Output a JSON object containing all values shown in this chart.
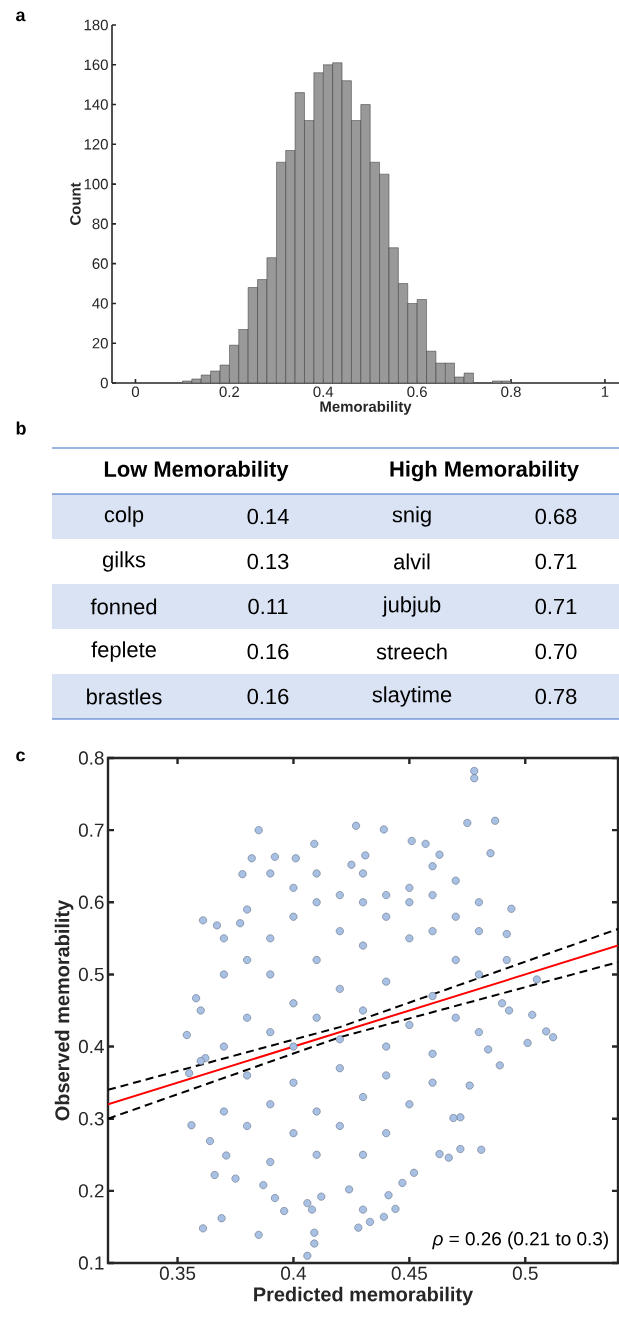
{
  "chart_data": [
    {
      "type": "histogram",
      "title": "a",
      "xlabel": "Memorability",
      "ylabel": "Count",
      "color": "#999999",
      "bins": [
        0.1,
        0.12,
        0.14,
        0.16,
        0.18,
        0.2,
        0.22,
        0.24,
        0.26,
        0.28,
        0.3,
        0.32,
        0.34,
        0.36,
        0.38,
        0.4,
        0.42,
        0.44,
        0.46,
        0.48,
        0.5,
        0.52,
        0.54,
        0.56,
        0.58,
        0.6,
        0.62,
        0.64,
        0.66,
        0.68,
        0.7,
        0.72,
        0.74,
        0.76,
        0.78,
        0.8
      ],
      "values": [
        1,
        2,
        4,
        6,
        9,
        19,
        27,
        48,
        52,
        63,
        111,
        117,
        146,
        132,
        156,
        160,
        161,
        152,
        132,
        140,
        111,
        105,
        68,
        50,
        40,
        42,
        16,
        10,
        10,
        3,
        5,
        0,
        0,
        1,
        1
      ],
      "xlim": [
        -0.05,
        1.03
      ],
      "ylim": [
        0,
        180
      ],
      "xticks": [
        0,
        0.2,
        0.4,
        0.6,
        0.8,
        1
      ],
      "yticks": [
        0,
        20,
        40,
        60,
        80,
        100,
        120,
        140,
        160,
        180
      ]
    },
    {
      "type": "other",
      "title": "b",
      "annotations": [
        "Low Memorability",
        "High Memorability",
        "colp",
        "0.14",
        "snig",
        "0.68",
        "gilks",
        "0.13",
        "alvil",
        "0.71",
        "fonned",
        "0.11",
        "jubjub",
        "0.71",
        "feplete",
        "0.16",
        "streech",
        "0.70",
        "brastles",
        "0.16",
        "slaytime",
        "0.78"
      ]
    },
    {
      "type": "scatter",
      "title": "c",
      "xlabel": "Predicted memorability",
      "ylabel": "Observed memorability",
      "series": [
        {
          "type": "scatter",
          "marker": "circle",
          "color": "#a7c0e4",
          "x": [
            0.478,
            0.478,
            0.475,
            0.487,
            0.385,
            0.427,
            0.439,
            0.409,
            0.451,
            0.457,
            0.485,
            0.463,
            0.382,
            0.392,
            0.401,
            0.431,
            0.425,
            0.378,
            0.361,
            0.367,
            0.377,
            0.494,
            0.505,
            0.492,
            0.492,
            0.358,
            0.354,
            0.356,
            0.361,
            0.369,
            0.385,
            0.406,
            0.409,
            0.409,
            0.396,
            0.408,
            0.428,
            0.433,
            0.439,
            0.444,
            0.43,
            0.441,
            0.447,
            0.452,
            0.481,
            0.472,
            0.463,
            0.467,
            0.501,
            0.509,
            0.512,
            0.503,
            0.493,
            0.489,
            0.484,
            0.472,
            0.469,
            0.476,
            0.364,
            0.366,
            0.375,
            0.371,
            0.392,
            0.412,
            0.424,
            0.406,
            0.387,
            0.355,
            0.362,
            0.39,
            0.4,
            0.41,
            0.42,
            0.43,
            0.44,
            0.45,
            0.46,
            0.47,
            0.48,
            0.38,
            0.37,
            0.39,
            0.41,
            0.43,
            0.45,
            0.47,
            0.48,
            0.4,
            0.42,
            0.44,
            0.46,
            0.38,
            0.39,
            0.41,
            0.43,
            0.45,
            0.47,
            0.49,
            0.37,
            0.4,
            0.42,
            0.44,
            0.46,
            0.48,
            0.38,
            0.4,
            0.42,
            0.44,
            0.46,
            0.39,
            0.41,
            0.43,
            0.45,
            0.38,
            0.4,
            0.42,
            0.44,
            0.41,
            0.43,
            0.39,
            0.37,
            0.36,
            0.36,
            0.37,
            0.42,
            0.4,
            0.44,
            0.46,
            0.48,
            0.45,
            0.43,
            0.38,
            0.39,
            0.41,
            0.47,
            0.46
          ],
          "values": [
            0.782,
            0.772,
            0.71,
            0.713,
            0.7,
            0.706,
            0.701,
            0.681,
            0.685,
            0.681,
            0.668,
            0.666,
            0.661,
            0.663,
            0.661,
            0.665,
            0.652,
            0.639,
            0.575,
            0.568,
            0.571,
            0.591,
            0.493,
            0.556,
            0.52,
            0.467,
            0.416,
            0.291,
            0.148,
            0.162,
            0.139,
            0.11,
            0.142,
            0.127,
            0.172,
            0.174,
            0.149,
            0.157,
            0.164,
            0.175,
            0.174,
            0.194,
            0.211,
            0.225,
            0.257,
            0.258,
            0.251,
            0.246,
            0.405,
            0.421,
            0.413,
            0.444,
            0.45,
            0.374,
            0.396,
            0.302,
            0.301,
            0.346,
            0.269,
            0.222,
            0.217,
            0.249,
            0.19,
            0.192,
            0.202,
            0.183,
            0.208,
            0.363,
            0.384,
            0.55,
            0.58,
            0.6,
            0.61,
            0.6,
            0.61,
            0.6,
            0.61,
            0.58,
            0.56,
            0.52,
            0.5,
            0.5,
            0.52,
            0.54,
            0.55,
            0.52,
            0.5,
            0.46,
            0.48,
            0.49,
            0.47,
            0.44,
            0.42,
            0.44,
            0.45,
            0.43,
            0.44,
            0.46,
            0.4,
            0.4,
            0.41,
            0.4,
            0.39,
            0.42,
            0.36,
            0.35,
            0.37,
            0.36,
            0.35,
            0.32,
            0.31,
            0.33,
            0.32,
            0.29,
            0.28,
            0.29,
            0.28,
            0.25,
            0.25,
            0.24,
            0.31,
            0.38,
            0.45,
            0.55,
            0.56,
            0.62,
            0.58,
            0.56,
            0.6,
            0.62,
            0.64,
            0.59,
            0.64,
            0.64,
            0.63,
            0.65
          ]
        },
        {
          "type": "line",
          "color": "#ff0000",
          "x": [
            0.32,
            0.54
          ],
          "values": [
            0.32,
            0.54
          ]
        },
        {
          "type": "line",
          "color": "#000000",
          "line_style": "dashed",
          "x": [
            0.32,
            0.42,
            0.54
          ],
          "values": [
            0.34,
            0.427,
            0.563
          ]
        },
        {
          "type": "line",
          "color": "#000000",
          "line_style": "dashed",
          "x": [
            0.32,
            0.42,
            0.54
          ],
          "values": [
            0.3,
            0.413,
            0.517
          ]
        }
      ],
      "xlim": [
        0.32,
        0.54
      ],
      "ylim": [
        0.1,
        0.8
      ],
      "xticks": [
        0.35,
        0.4,
        0.45,
        0.5
      ],
      "yticks": [
        0.1,
        0.2,
        0.3,
        0.4,
        0.5,
        0.6,
        0.7,
        0.8
      ],
      "annotations": [
        "*ρ* = 0.26 (0.21 to 0.3)"
      ]
    }
  ]
}
